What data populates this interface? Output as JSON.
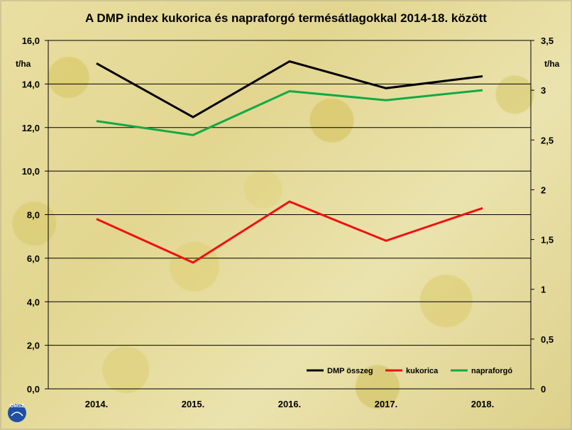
{
  "chart_data": {
    "type": "line",
    "title": "A DMP index kukorica és napraforgó termésátlagokkal 2014-18. között",
    "categories": [
      "2014.",
      "2015.",
      "2016.",
      "2017.",
      "2018."
    ],
    "y_left": {
      "unit": "t/ha",
      "range": [
        0,
        16
      ],
      "ticks": [
        "0,0",
        "2,0",
        "4,0",
        "6,0",
        "8,0",
        "10,0",
        "12,0",
        "14,0",
        "16,0"
      ]
    },
    "y_right": {
      "unit": "t/ha",
      "range": [
        0,
        3.5
      ],
      "ticks": [
        "0",
        "0,5",
        "1",
        "1,5",
        "2",
        "2,5",
        "3",
        "3,5"
      ]
    },
    "series": [
      {
        "name": "DMP összeg",
        "axis": "right",
        "color": "#000000",
        "values": [
          3.27,
          2.73,
          3.29,
          3.02,
          3.14
        ]
      },
      {
        "name": "kukorica",
        "axis": "left",
        "color": "#ee1111",
        "values": [
          7.8,
          5.8,
          8.6,
          6.8,
          8.3
        ]
      },
      {
        "name": "napraforgó",
        "axis": "right",
        "color": "#11aa44",
        "values": [
          2.69,
          2.55,
          2.99,
          2.9,
          3.0
        ]
      }
    ],
    "grid": true,
    "legend_position": "bottom-right"
  },
  "logo": {
    "text": "OMSZ",
    "color": "#1f4fa3"
  }
}
